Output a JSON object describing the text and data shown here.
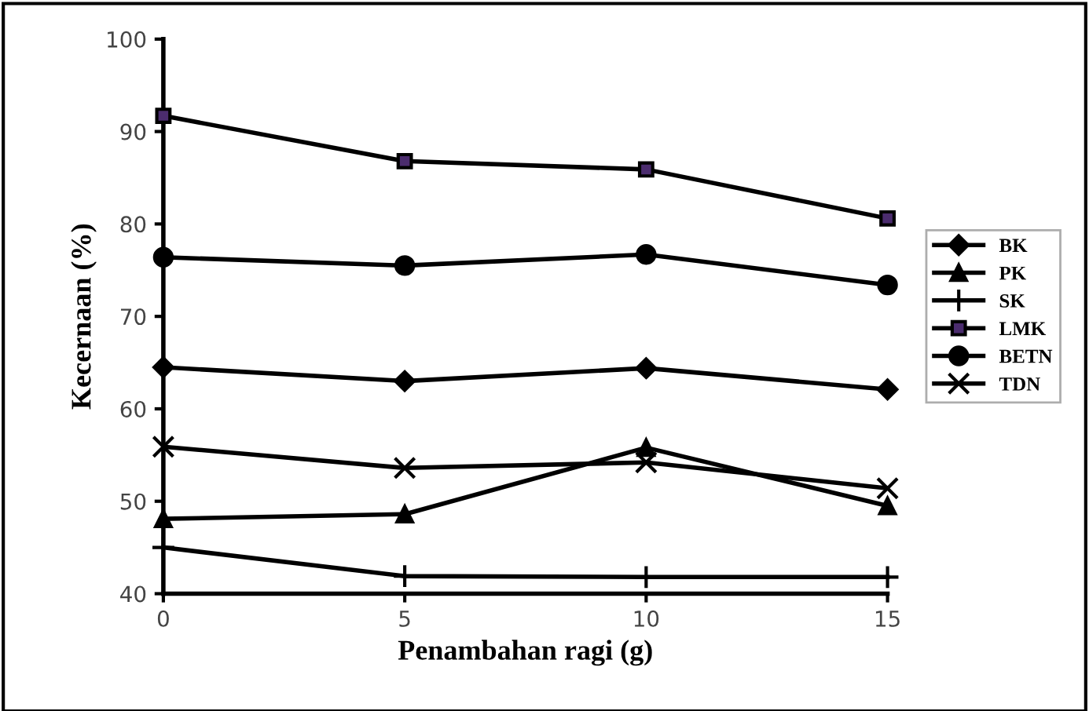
{
  "chart_data": {
    "type": "line",
    "xlabel": "Penambahan ragi (g)",
    "ylabel": "Kecernaan (%)",
    "x": [
      0,
      5,
      10,
      15
    ],
    "xlim": [
      0,
      15
    ],
    "xticks": [
      0,
      5,
      10,
      15
    ],
    "ylim": [
      40,
      100
    ],
    "yticks": [
      40,
      50,
      60,
      70,
      80,
      90,
      100
    ],
    "grid": false,
    "legend": "right",
    "line_style": "solid",
    "series": [
      {
        "name": "BK",
        "color": "#000000",
        "marker": "diamond",
        "values": [
          64.5,
          63.0,
          64.4,
          62.1
        ]
      },
      {
        "name": "PK",
        "color": "#000000",
        "marker": "triangle",
        "values": [
          48.1,
          48.6,
          55.8,
          49.5
        ]
      },
      {
        "name": "SK",
        "color": "#000000",
        "marker": "cross",
        "values": [
          45.0,
          41.9,
          41.8,
          41.8
        ]
      },
      {
        "name": "LMK",
        "color": "#000000",
        "marker": "square",
        "values": [
          91.7,
          86.8,
          85.9,
          80.6
        ]
      },
      {
        "name": "BETN",
        "color": "#000000",
        "marker": "circle",
        "values": [
          76.4,
          75.5,
          76.7,
          73.4
        ]
      },
      {
        "name": "TDN",
        "color": "#000000",
        "marker": "x",
        "values": [
          55.9,
          53.6,
          54.2,
          51.4
        ]
      }
    ]
  }
}
